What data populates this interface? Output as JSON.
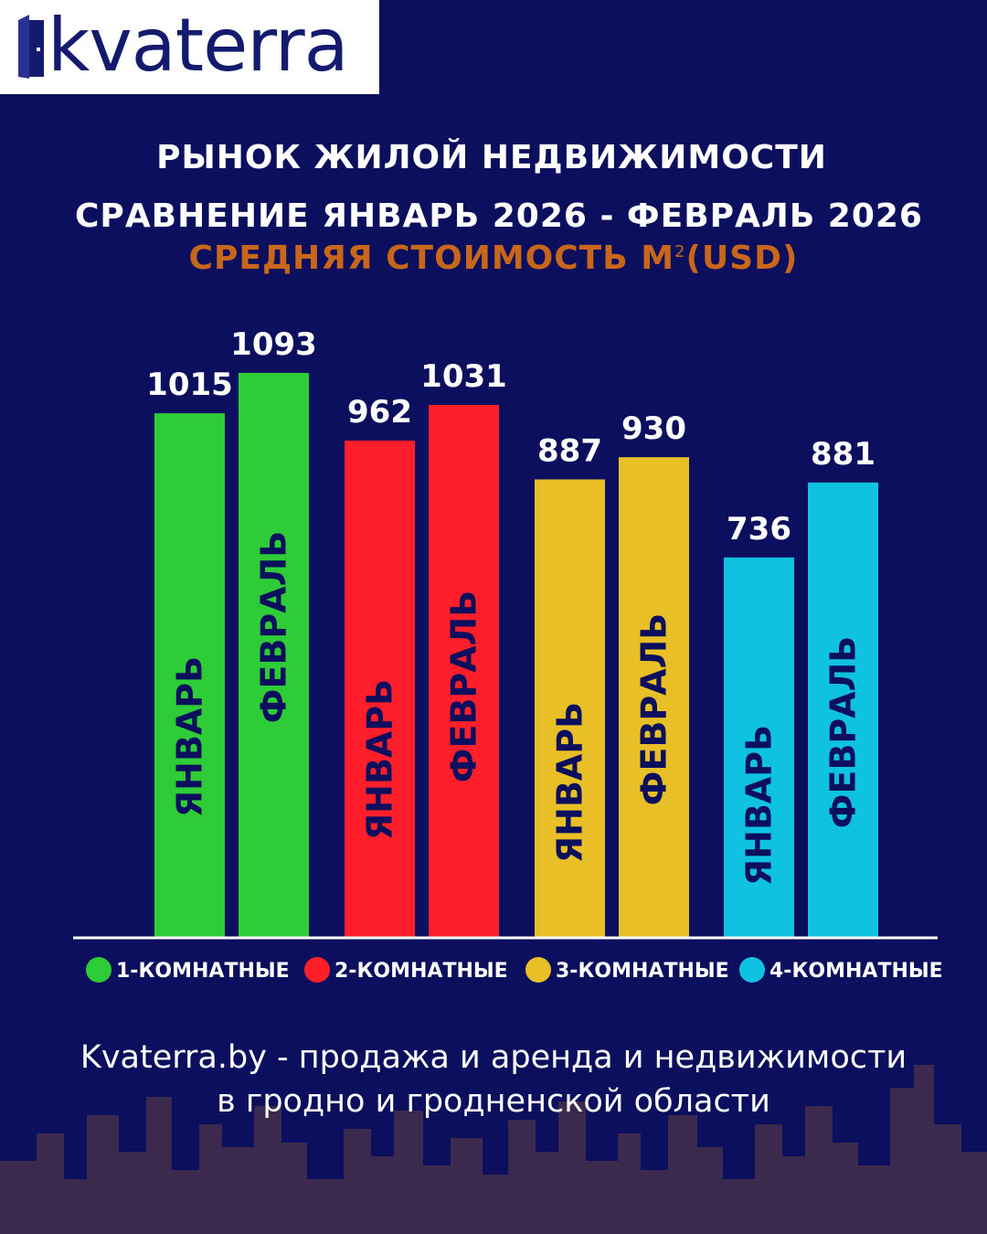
{
  "brand": {
    "name": "kvaterra"
  },
  "header": {
    "title_line1": "РЫНОК ЖИЛОЙ НЕДВИЖИМОСТИ",
    "title_line2": "СРАВНЕНИЕ ЯНВАРЬ 2026 - ФЕВРАЛЬ 2026",
    "subtitle_main": "СРЕДНЯЯ СТОИМОСТЬ М",
    "subtitle_sup": "2",
    "subtitle_unit": "(USD)"
  },
  "chart_data": {
    "type": "bar",
    "title": "СРЕДНЯЯ СТОИМОСТЬ М²(USD)",
    "categories": [
      "1-КОМНАТНЫЕ",
      "2-КОМНАТНЫЕ",
      "3-КОМНАТНЫЕ",
      "4-КОМНАТНЫЕ"
    ],
    "series": [
      {
        "name": "ЯНВАРЬ",
        "values": [
          1015,
          962,
          887,
          736
        ]
      },
      {
        "name": "ФЕВРАЛЬ",
        "values": [
          1093,
          1031,
          930,
          881
        ]
      }
    ],
    "category_colors": [
      "#2ecc37",
      "#ff1f2a",
      "#e8bf26",
      "#0fc2e0"
    ],
    "bar_text_colors": [
      "#2ecc37",
      "#0c0f5e"
    ],
    "bar_text_colors_alt": [
      "#0c0f5e",
      "#0c0f5e"
    ],
    "ylim": [
      0,
      1093
    ],
    "legend": "bottom",
    "grid": false,
    "data_labels": true
  },
  "footer": {
    "line1": "Kvaterra.by - продажа и аренда и недвижимости",
    "line2": "в гродно и гродненской области"
  },
  "colors": {
    "background": "#0c0f5e",
    "title": "#ffffff",
    "subtitle": "#c8661a",
    "skyline": "#3b2a4e"
  }
}
